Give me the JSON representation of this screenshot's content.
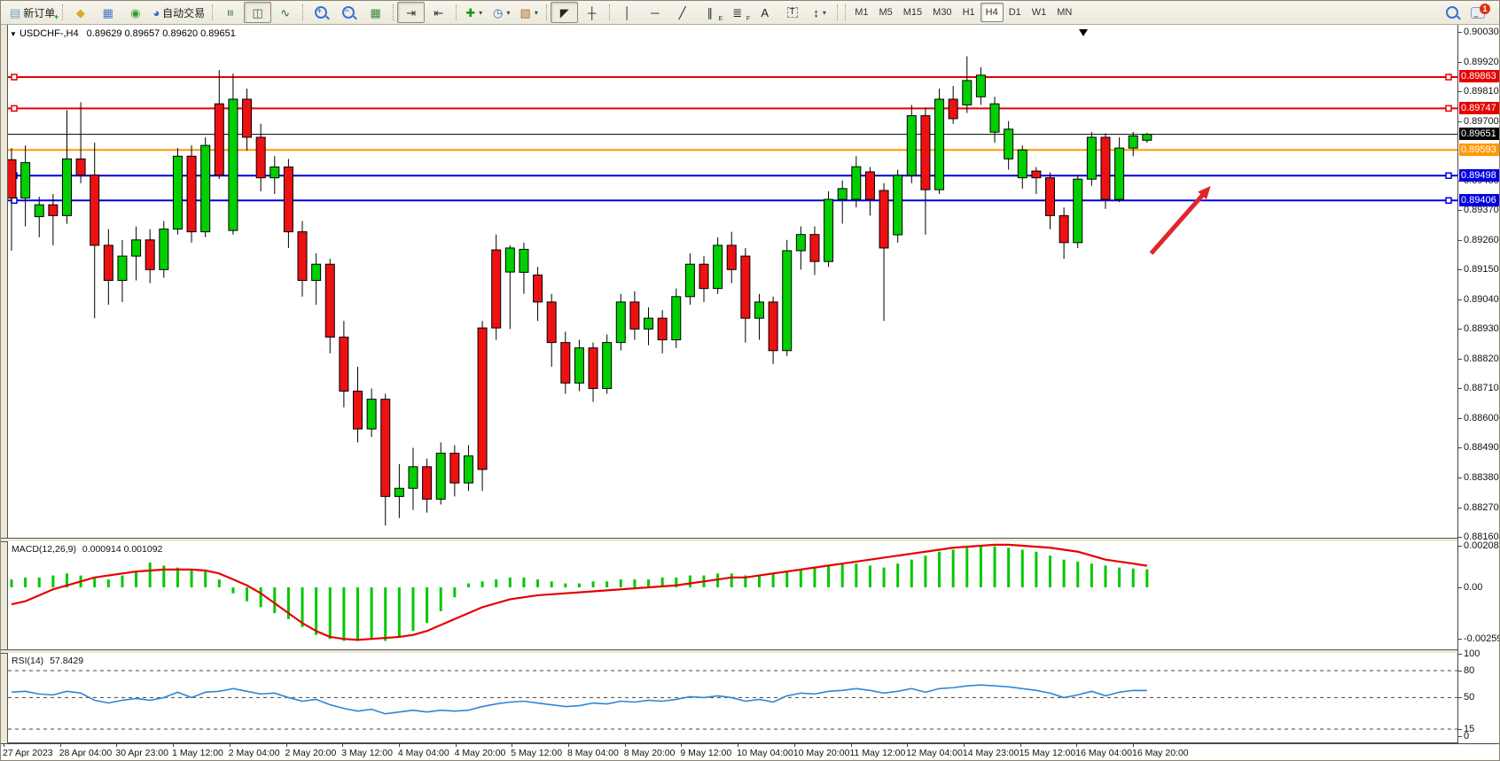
{
  "toolbar": {
    "buttons": [
      {
        "name": "new-order-button",
        "icon": "new-order-icon",
        "glyph": "▤",
        "color": "#7a9cc6",
        "plus": "+",
        "label": "新订单"
      },
      {
        "sep": true
      },
      {
        "name": "styler-button",
        "icon": "brush-icon",
        "glyph": "◆",
        "color": "#d9a62e"
      },
      {
        "name": "profiles-button",
        "icon": "profiles-icon",
        "glyph": "▦",
        "color": "#4a76c9"
      },
      {
        "name": "sounds-button",
        "icon": "sound-icon",
        "glyph": "◉",
        "color": "#2fa32f"
      },
      {
        "name": "auto-trading-button",
        "icon": "autotrading-icon",
        "glyph": "◕",
        "color": "#2e64c8",
        "label": "自动交易"
      },
      {
        "sep": true
      },
      {
        "name": "bar-chart-button",
        "icon": "bars-icon",
        "glyph": "≡",
        "color": "#356a35",
        "rot": 90
      },
      {
        "name": "candle-chart-button",
        "icon": "candles-icon",
        "glyph": "◫",
        "color": "#356a35",
        "active": true
      },
      {
        "name": "line-chart-button",
        "icon": "line-icon",
        "glyph": "∿",
        "color": "#356a35"
      },
      {
        "sep": true
      },
      {
        "name": "zoom-in-button",
        "icon": "zoom-in-icon",
        "mag": "+"
      },
      {
        "name": "zoom-out-button",
        "icon": "zoom-out-icon",
        "mag": "−"
      },
      {
        "name": "tile-windows-button",
        "icon": "tile-icon",
        "glyph": "▦",
        "color": "#3a8a3a"
      },
      {
        "sep": true
      },
      {
        "name": "auto-scroll-button",
        "icon": "autoscroll-icon",
        "glyph": "⇥",
        "color": "#333",
        "active": true
      },
      {
        "name": "chart-shift-button",
        "icon": "shift-icon",
        "glyph": "⇤",
        "color": "#333"
      },
      {
        "sep": true
      },
      {
        "name": "indicators-button",
        "icon": "indicators-icon",
        "glyph": "✚",
        "color": "#0a9a0a",
        "caret": "▾"
      },
      {
        "name": "periods-button",
        "icon": "clock-icon",
        "glyph": "◷",
        "color": "#2e64c8",
        "caret": "▾"
      },
      {
        "name": "templates-button",
        "icon": "template-icon",
        "glyph": "▧",
        "color": "#b06a2a",
        "caret": "▾"
      },
      {
        "sep": true
      },
      {
        "name": "cursor-button",
        "icon": "cursor-icon",
        "glyph": "◤",
        "color": "#222",
        "active": true
      },
      {
        "name": "crosshair-button",
        "icon": "crosshair-icon",
        "glyph": "┼",
        "color": "#222"
      },
      {
        "sep": true
      },
      {
        "name": "vertical-line-button",
        "icon": "vline-icon",
        "glyph": "│",
        "color": "#222"
      },
      {
        "name": "horizontal-line-button",
        "icon": "hline-icon",
        "glyph": "─",
        "color": "#222"
      },
      {
        "name": "trendline-button",
        "icon": "trendline-icon",
        "glyph": "╱",
        "color": "#222"
      },
      {
        "name": "channel-button",
        "icon": "channel-icon",
        "glyph": "∥",
        "color": "#222",
        "sub": "E"
      },
      {
        "name": "fibonacci-button",
        "icon": "fibo-icon",
        "glyph": "≣",
        "color": "#222",
        "sub": "F"
      },
      {
        "name": "text-button",
        "icon": "text-icon",
        "glyph": "A",
        "color": "#222"
      },
      {
        "name": "label-button",
        "icon": "label-icon",
        "glyph": "T",
        "color": "#222",
        "boxed": true
      },
      {
        "name": "arrows-button",
        "icon": "shapes-icon",
        "glyph": "↕",
        "color": "#222",
        "caret": "▾"
      },
      {
        "sep": true
      }
    ],
    "timeframes": [
      "M1",
      "M5",
      "M15",
      "M30",
      "H1",
      "H4",
      "D1",
      "W1",
      "MN"
    ],
    "active_timeframe": "H4",
    "notification_badge": "1"
  },
  "chart": {
    "symbol_period": "USDCHF-,H4",
    "ohlc_text": "0.89629 0.89657 0.89620 0.89651"
  },
  "indicator_labels": {
    "macd": "MACD(12,26,9)",
    "macd_values": "0.000914 0.001092",
    "rsi": "RSI(14)",
    "rsi_value": "57.8429"
  },
  "price_axis": {
    "grid_labels": [
      "0.90030",
      "0.89920",
      "0.89810",
      "0.89700",
      "0.89480",
      "0.89370",
      "0.89260",
      "0.89150",
      "0.89040",
      "0.88930",
      "0.88820",
      "0.88710",
      "0.88600",
      "0.88490",
      "0.88380",
      "0.88270",
      "0.88160"
    ],
    "badges": [
      {
        "value": "0.89863",
        "bg": "#e60000"
      },
      {
        "value": "0.89747",
        "bg": "#e60000"
      },
      {
        "value": "0.89651",
        "bg": "#000000"
      },
      {
        "value": "0.89593",
        "bg": "#ff9900"
      },
      {
        "value": "0.89498",
        "bg": "#0000e0"
      },
      {
        "value": "0.89406",
        "bg": "#0000e0"
      }
    ]
  },
  "macd_axis": [
    "0.002088",
    "0.00",
    "-0.002597"
  ],
  "rsi_axis": [
    "100",
    "80",
    "50",
    "15",
    "0"
  ],
  "time_axis": [
    "27 Apr 2023",
    "28 Apr 04:00",
    "30 Apr 23:00",
    "1 May 12:00",
    "2 May 04:00",
    "2 May 20:00",
    "3 May 12:00",
    "4 May 04:00",
    "4 May 20:00",
    "5 May 12:00",
    "8 May 04:00",
    "8 May 20:00",
    "9 May 12:00",
    "10 May 04:00",
    "10 May 20:00",
    "11 May 12:00",
    "12 May 04:00",
    "14 May 23:00",
    "15 May 12:00",
    "16 May 04:00",
    "16 May 20:00"
  ],
  "levels": [
    {
      "price": 0.89863,
      "color": "#e60000",
      "width": 2,
      "handles": true
    },
    {
      "price": 0.89747,
      "color": "#e60000",
      "width": 2,
      "handles": true
    },
    {
      "price": 0.89651,
      "color": "#000000",
      "width": 1,
      "handles": false
    },
    {
      "price": 0.89593,
      "color": "#ff9900",
      "width": 2,
      "handles": false
    },
    {
      "price": 0.89498,
      "color": "#0000e0",
      "width": 2,
      "handles": true
    },
    {
      "price": 0.89406,
      "color": "#0000e0",
      "width": 2,
      "handles": true
    }
  ],
  "annotation_arrow": {
    "from_bar": 82.3,
    "from_price": 0.8921,
    "to_bar": 86.6,
    "to_price": 0.8946,
    "color": "#e0262d"
  },
  "shift_marker_bar": 77.4,
  "colors": {
    "up": "#00cf00",
    "down": "#ee1111",
    "wick": "#000000",
    "macd_hist": "#00c800",
    "macd_signal": "#e60000",
    "rsi_line": "#2e86d6"
  },
  "chart_data": [
    {
      "type": "candlestick",
      "title": "USDCHF-,H4",
      "ylabel": "price",
      "ylim": [
        0.88157,
        0.9005
      ],
      "x_labels": [
        "27 Apr 2023",
        "28 Apr 04:00",
        "30 Apr 23:00",
        "1 May 12:00",
        "2 May 04:00",
        "2 May 20:00",
        "3 May 12:00",
        "4 May 04:00",
        "4 May 20:00",
        "5 May 12:00",
        "8 May 04:00",
        "8 May 20:00",
        "9 May 12:00",
        "10 May 04:00",
        "10 May 20:00",
        "11 May 12:00",
        "12 May 04:00",
        "14 May 23:00",
        "15 May 12:00",
        "16 May 04:00",
        "16 May 20:00"
      ],
      "ohlc": [
        [
          0.89557,
          0.896,
          0.8922,
          0.89415
        ],
        [
          0.89415,
          0.8961,
          0.8931,
          0.89546
        ],
        [
          0.89346,
          0.8942,
          0.8927,
          0.8939
        ],
        [
          0.8939,
          0.8943,
          0.8924,
          0.8935
        ],
        [
          0.8935,
          0.8974,
          0.8932,
          0.8956
        ],
        [
          0.8956,
          0.8977,
          0.8947,
          0.895
        ],
        [
          0.895,
          0.8962,
          0.8897,
          0.8924
        ],
        [
          0.8924,
          0.893,
          0.8902,
          0.8911
        ],
        [
          0.8911,
          0.8926,
          0.8903,
          0.892
        ],
        [
          0.892,
          0.8931,
          0.8911,
          0.8926
        ],
        [
          0.8926,
          0.893,
          0.891,
          0.8915
        ],
        [
          0.8915,
          0.8933,
          0.8912,
          0.893
        ],
        [
          0.893,
          0.896,
          0.8928,
          0.8957
        ],
        [
          0.8957,
          0.8961,
          0.8925,
          0.8929
        ],
        [
          0.8929,
          0.8964,
          0.8927,
          0.8961
        ],
        [
          0.89764,
          0.89889,
          0.89486,
          0.895
        ],
        [
          0.89295,
          0.89876,
          0.8928,
          0.89781
        ],
        [
          0.89781,
          0.8982,
          0.8959,
          0.8964
        ],
        [
          0.8964,
          0.8969,
          0.8944,
          0.8949
        ],
        [
          0.8949,
          0.8957,
          0.8943,
          0.8953
        ],
        [
          0.8953,
          0.8956,
          0.8923,
          0.8929
        ],
        [
          0.8929,
          0.8933,
          0.8905,
          0.8911
        ],
        [
          0.8911,
          0.8921,
          0.8902,
          0.8917
        ],
        [
          0.8917,
          0.8919,
          0.8884,
          0.889
        ],
        [
          0.889,
          0.8896,
          0.8864,
          0.887
        ],
        [
          0.887,
          0.8879,
          0.8851,
          0.8856
        ],
        [
          0.8856,
          0.8871,
          0.8853,
          0.8867
        ],
        [
          0.8867,
          0.8869,
          0.88202,
          0.8831
        ],
        [
          0.8831,
          0.8843,
          0.8823,
          0.8834
        ],
        [
          0.8834,
          0.8849,
          0.8826,
          0.8842
        ],
        [
          0.8842,
          0.8845,
          0.8825,
          0.883
        ],
        [
          0.883,
          0.8851,
          0.8828,
          0.8847
        ],
        [
          0.8847,
          0.885,
          0.8831,
          0.8836
        ],
        [
          0.8836,
          0.885,
          0.8833,
          0.8846
        ],
        [
          0.88934,
          0.8896,
          0.8833,
          0.8841
        ],
        [
          0.89223,
          0.8928,
          0.8889,
          0.88934
        ],
        [
          0.89141,
          0.8924,
          0.8893,
          0.8923
        ],
        [
          0.8914,
          0.8925,
          0.8906,
          0.89225
        ],
        [
          0.8913,
          0.8916,
          0.8896,
          0.8903
        ],
        [
          0.8903,
          0.8906,
          0.8879,
          0.8888
        ],
        [
          0.8888,
          0.8892,
          0.8869,
          0.8873
        ],
        [
          0.8873,
          0.8889,
          0.887,
          0.8886
        ],
        [
          0.8886,
          0.8888,
          0.8866,
          0.8871
        ],
        [
          0.8871,
          0.8891,
          0.8869,
          0.8888
        ],
        [
          0.8888,
          0.8906,
          0.8885,
          0.8903
        ],
        [
          0.8903,
          0.8907,
          0.8889,
          0.8893
        ],
        [
          0.8893,
          0.8901,
          0.8887,
          0.8897
        ],
        [
          0.8897,
          0.89,
          0.8884,
          0.8889
        ],
        [
          0.8889,
          0.8908,
          0.8886,
          0.8905
        ],
        [
          0.8905,
          0.8921,
          0.8902,
          0.8917
        ],
        [
          0.8917,
          0.892,
          0.8903,
          0.8908
        ],
        [
          0.8908,
          0.8927,
          0.8906,
          0.8924
        ],
        [
          0.8924,
          0.8929,
          0.891,
          0.8915
        ],
        [
          0.892,
          0.8923,
          0.8888,
          0.8897
        ],
        [
          0.8897,
          0.8906,
          0.8889,
          0.8903
        ],
        [
          0.8903,
          0.8905,
          0.888,
          0.8885
        ],
        [
          0.8885,
          0.8926,
          0.8883,
          0.8922
        ],
        [
          0.8922,
          0.8931,
          0.8915,
          0.8928
        ],
        [
          0.8928,
          0.8931,
          0.8913,
          0.8918
        ],
        [
          0.8918,
          0.8944,
          0.8916,
          0.8941
        ],
        [
          0.8941,
          0.8948,
          0.8932,
          0.8945
        ],
        [
          0.8941,
          0.8957,
          0.8938,
          0.89531
        ],
        [
          0.89512,
          0.8953,
          0.8935,
          0.8941
        ],
        [
          0.89443,
          0.8947,
          0.8896,
          0.8923
        ],
        [
          0.89279,
          0.8952,
          0.8925,
          0.89499
        ],
        [
          0.89499,
          0.8976,
          0.8947,
          0.8972
        ],
        [
          0.8972,
          0.8975,
          0.8928,
          0.89446
        ],
        [
          0.89446,
          0.8982,
          0.8943,
          0.89781
        ],
        [
          0.89781,
          0.8983,
          0.8969,
          0.89709
        ],
        [
          0.8976,
          0.8994,
          0.8973,
          0.8985
        ],
        [
          0.8979,
          0.899,
          0.8976,
          0.8987
        ],
        [
          0.89659,
          0.8979,
          0.8962,
          0.89764
        ],
        [
          0.8956,
          0.897,
          0.8952,
          0.8967
        ],
        [
          0.8949,
          0.8961,
          0.8945,
          0.89593
        ],
        [
          0.89515,
          0.8953,
          0.8943,
          0.8949
        ],
        [
          0.8949,
          0.8951,
          0.893,
          0.8935
        ],
        [
          0.8935,
          0.8938,
          0.8919,
          0.8925
        ],
        [
          0.8925,
          0.895,
          0.8923,
          0.89485
        ],
        [
          0.89485,
          0.8966,
          0.8946,
          0.8964
        ],
        [
          0.8964,
          0.89655,
          0.89375,
          0.8941
        ],
        [
          0.8941,
          0.8964,
          0.894,
          0.896
        ],
        [
          0.896,
          0.8966,
          0.8957,
          0.89645
        ],
        [
          0.89629,
          0.89657,
          0.8962,
          0.89651
        ]
      ]
    },
    {
      "type": "bar",
      "title": "MACD(12,26,9)",
      "ylim": [
        -0.00313,
        0.00232
      ],
      "y_ticks": [
        "0.002088",
        "0.00",
        "-0.002597"
      ],
      "values": [
        0.0004,
        0.0005,
        0.0005,
        0.0006,
        0.0007,
        0.0006,
        0.0005,
        0.0004,
        0.0006,
        0.0008,
        0.00125,
        0.0011,
        0.001,
        0.0009,
        0.0008,
        0.0004,
        -0.0003,
        -0.0007,
        -0.001,
        -0.0013,
        -0.0016,
        -0.002,
        -0.0024,
        -0.0026,
        -0.0027,
        -0.0027,
        -0.0026,
        -0.0027,
        -0.0025,
        -0.0022,
        -0.0018,
        -0.0012,
        -0.0005,
        0.0002,
        0.0003,
        0.0004,
        0.0005,
        0.0005,
        0.0004,
        0.0003,
        0.0002,
        0.0002,
        0.0003,
        0.0003,
        0.0004,
        0.0004,
        0.0004,
        0.0005,
        0.0005,
        0.0006,
        0.0006,
        0.0007,
        0.0007,
        0.0006,
        0.0006,
        0.0007,
        0.0008,
        0.0009,
        0.001,
        0.0011,
        0.0012,
        0.0012,
        0.0011,
        0.001,
        0.0012,
        0.0014,
        0.0016,
        0.0018,
        0.0019,
        0.002,
        0.00209,
        0.00207,
        0.002,
        0.0019,
        0.0018,
        0.0016,
        0.0014,
        0.0013,
        0.0012,
        0.0011,
        0.001,
        0.00095,
        0.000914
      ],
      "signal_line": [
        -0.00085,
        -0.0007,
        -0.0004,
        -0.0001,
        0.0001,
        0.0003,
        0.0005,
        0.0006,
        0.0007,
        0.0008,
        0.00085,
        0.0009,
        0.0009,
        0.0009,
        0.00085,
        0.0007,
        0.0004,
        0.0001,
        -0.0003,
        -0.0008,
        -0.0013,
        -0.0018,
        -0.0022,
        -0.0025,
        -0.0026,
        -0.00265,
        -0.0026,
        -0.00255,
        -0.0025,
        -0.0024,
        -0.0022,
        -0.0019,
        -0.0016,
        -0.0013,
        -0.001,
        -0.0008,
        -0.0006,
        -0.0005,
        -0.0004,
        -0.00035,
        -0.0003,
        -0.00025,
        -0.0002,
        -0.00015,
        -0.0001,
        -5e-05,
        0,
        5e-05,
        0.0001,
        0.0002,
        0.0003,
        0.0004,
        0.0005,
        0.0005,
        0.0006,
        0.0007,
        0.0008,
        0.0009,
        0.001,
        0.0011,
        0.0012,
        0.0013,
        0.0014,
        0.0015,
        0.0016,
        0.0017,
        0.0018,
        0.0019,
        0.002,
        0.00205,
        0.0021,
        0.00215,
        0.00215,
        0.0021,
        0.00205,
        0.002,
        0.0019,
        0.0018,
        0.0016,
        0.0014,
        0.0013,
        0.0012,
        0.00109
      ]
    },
    {
      "type": "line",
      "title": "RSI(14)",
      "ylim": [
        0,
        100
      ],
      "y_ticks": [
        "100",
        "80",
        "50",
        "15",
        "0"
      ],
      "dashed_levels": [
        80,
        50,
        15
      ],
      "values": [
        56,
        57,
        54,
        53,
        57,
        55,
        47,
        44,
        47,
        49,
        47,
        50,
        56,
        50,
        56,
        57,
        60,
        57,
        54,
        55,
        50,
        46,
        48,
        42,
        38,
        35,
        37,
        32,
        34,
        36,
        34,
        36,
        35,
        36,
        40,
        43,
        45,
        46,
        44,
        42,
        40,
        41,
        44,
        43,
        46,
        45,
        47,
        46,
        48,
        51,
        50,
        52,
        50,
        46,
        48,
        45,
        52,
        55,
        54,
        57,
        58,
        60,
        58,
        55,
        57,
        60,
        56,
        60,
        61,
        63,
        64,
        63,
        62,
        60,
        58,
        55,
        50,
        53,
        57,
        52,
        56,
        58,
        57.84
      ]
    }
  ]
}
